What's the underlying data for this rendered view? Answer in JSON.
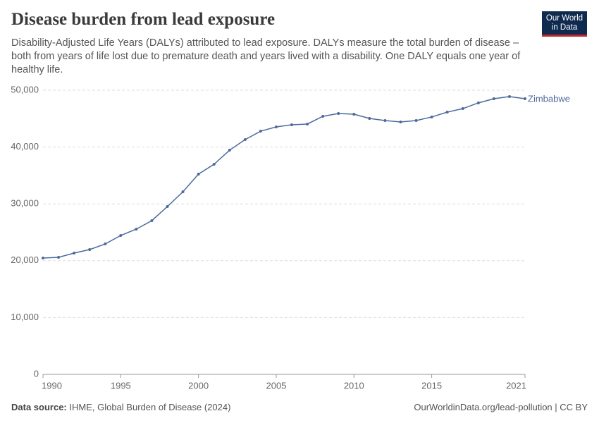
{
  "chart_data": {
    "type": "line",
    "title": "Disease burden from lead exposure",
    "subtitle": "Disability-Adjusted Life Years (DALYs) attributed to lead exposure. DALYs measure the total burden of disease – both from years of life lost due to premature death and years lived with a disability. One DALY equals one year of healthy life.",
    "logo": [
      "Our World",
      "in Data"
    ],
    "source_label": "Data source:",
    "source": "IHME, Global Burden of Disease (2024)",
    "footer_right": "OurWorldinData.org/lead-pollution | CC BY",
    "x": [
      1990,
      1991,
      1992,
      1993,
      1994,
      1995,
      1996,
      1997,
      1998,
      1999,
      2000,
      2001,
      2002,
      2003,
      2004,
      2005,
      2006,
      2007,
      2008,
      2009,
      2010,
      2011,
      2012,
      2013,
      2014,
      2015,
      2016,
      2017,
      2018,
      2019,
      2020,
      2021
    ],
    "series": [
      {
        "name": "Zimbabwe",
        "color": "#4c6a9c",
        "values": [
          20470,
          20600,
          21340,
          21960,
          22950,
          24440,
          25560,
          27050,
          29530,
          32130,
          35240,
          36970,
          39450,
          41320,
          42800,
          43550,
          43920,
          44050,
          45410,
          45910,
          45780,
          45040,
          44670,
          44420,
          44670,
          45290,
          46150,
          46770,
          47770,
          48510,
          48880,
          48510
        ]
      }
    ],
    "xlim": [
      1990,
      2021
    ],
    "xticks": [
      1990,
      1995,
      2000,
      2005,
      2010,
      2015,
      2021
    ],
    "ylim": [
      0,
      50000
    ],
    "yticks": [
      0,
      {
        "value": 10000,
        "label": "10,000"
      },
      {
        "value": 20000,
        "label": "20,000"
      },
      {
        "value": 30000,
        "label": "30,000"
      },
      {
        "value": 40000,
        "label": "40,000"
      },
      {
        "value": 50000,
        "label": "50,000"
      }
    ],
    "grid": true
  }
}
